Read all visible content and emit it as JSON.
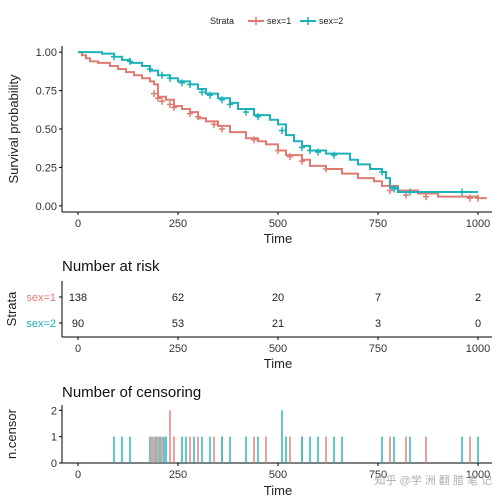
{
  "chart_data": [
    {
      "type": "line",
      "subtype": "kaplan-meier",
      "title": "",
      "xlabel": "Time",
      "ylabel": "Survival probability",
      "xlim": [
        -40,
        1035
      ],
      "ylim": [
        -0.04,
        1.04
      ],
      "x_ticks": [
        0,
        250,
        500,
        750,
        1000
      ],
      "y_ticks": [
        0.0,
        0.25,
        0.5,
        0.75,
        1.0
      ],
      "x_tick_labels": [
        "0",
        "250",
        "500",
        "750",
        "1000"
      ],
      "y_tick_labels": [
        "0.00",
        "0.25",
        "0.50",
        "0.75",
        "1.00"
      ],
      "grid": false,
      "legend": {
        "title": "Strata",
        "position": "top",
        "entries": [
          "sex=1",
          "sex=2"
        ]
      },
      "series": [
        {
          "name": "sex=1",
          "color": "#e07b72",
          "points": [
            [
              0,
              1.0
            ],
            [
              10,
              0.98
            ],
            [
              20,
              0.96
            ],
            [
              30,
              0.94
            ],
            [
              50,
              0.93
            ],
            [
              80,
              0.91
            ],
            [
              100,
              0.89
            ],
            [
              120,
              0.87
            ],
            [
              140,
              0.85
            ],
            [
              160,
              0.83
            ],
            [
              180,
              0.81
            ],
            [
              190,
              0.79
            ],
            [
              200,
              0.71
            ],
            [
              220,
              0.69
            ],
            [
              240,
              0.65
            ],
            [
              260,
              0.63
            ],
            [
              280,
              0.61
            ],
            [
              300,
              0.57
            ],
            [
              320,
              0.55
            ],
            [
              350,
              0.52
            ],
            [
              380,
              0.48
            ],
            [
              420,
              0.44
            ],
            [
              450,
              0.42
            ],
            [
              470,
              0.4
            ],
            [
              500,
              0.36
            ],
            [
              520,
              0.33
            ],
            [
              560,
              0.3
            ],
            [
              580,
              0.26
            ],
            [
              620,
              0.24
            ],
            [
              660,
              0.21
            ],
            [
              700,
              0.18
            ],
            [
              740,
              0.16
            ],
            [
              760,
              0.13
            ],
            [
              800,
              0.1
            ],
            [
              850,
              0.08
            ],
            [
              900,
              0.06
            ],
            [
              1000,
              0.05
            ],
            [
              1022,
              0.05
            ]
          ],
          "censor_marks": [
            [
              190,
              0.73
            ],
            [
              200,
              0.7
            ],
            [
              210,
              0.68
            ],
            [
              230,
              0.66
            ],
            [
              240,
              0.64
            ],
            [
              280,
              0.6
            ],
            [
              300,
              0.58
            ],
            [
              340,
              0.53
            ],
            [
              360,
              0.5
            ],
            [
              440,
              0.43
            ],
            [
              500,
              0.36
            ],
            [
              530,
              0.32
            ],
            [
              560,
              0.29
            ],
            [
              620,
              0.24
            ],
            [
              780,
              0.1
            ],
            [
              820,
              0.07
            ],
            [
              870,
              0.06
            ],
            [
              980,
              0.05
            ],
            [
              1000,
              0.05
            ]
          ]
        },
        {
          "name": "sex=2",
          "color": "#1bb2b9",
          "points": [
            [
              0,
              1.0
            ],
            [
              60,
              0.99
            ],
            [
              90,
              0.97
            ],
            [
              110,
              0.95
            ],
            [
              130,
              0.93
            ],
            [
              160,
              0.91
            ],
            [
              180,
              0.88
            ],
            [
              200,
              0.85
            ],
            [
              230,
              0.83
            ],
            [
              250,
              0.81
            ],
            [
              280,
              0.79
            ],
            [
              300,
              0.76
            ],
            [
              320,
              0.73
            ],
            [
              350,
              0.7
            ],
            [
              380,
              0.67
            ],
            [
              400,
              0.63
            ],
            [
              440,
              0.59
            ],
            [
              480,
              0.56
            ],
            [
              500,
              0.53
            ],
            [
              520,
              0.46
            ],
            [
              540,
              0.42
            ],
            [
              560,
              0.39
            ],
            [
              580,
              0.36
            ],
            [
              620,
              0.34
            ],
            [
              680,
              0.3
            ],
            [
              700,
              0.27
            ],
            [
              730,
              0.24
            ],
            [
              760,
              0.22
            ],
            [
              770,
              0.18
            ],
            [
              780,
              0.12
            ],
            [
              800,
              0.09
            ],
            [
              960,
              0.09
            ],
            [
              1000,
              0.09
            ]
          ],
          "censor_marks": [
            [
              90,
              0.97
            ],
            [
              130,
              0.94
            ],
            [
              180,
              0.89
            ],
            [
              210,
              0.85
            ],
            [
              230,
              0.83
            ],
            [
              260,
              0.8
            ],
            [
              280,
              0.79
            ],
            [
              310,
              0.74
            ],
            [
              330,
              0.72
            ],
            [
              360,
              0.69
            ],
            [
              380,
              0.66
            ],
            [
              420,
              0.61
            ],
            [
              450,
              0.58
            ],
            [
              510,
              0.49
            ],
            [
              560,
              0.38
            ],
            [
              580,
              0.36
            ],
            [
              600,
              0.35
            ],
            [
              640,
              0.33
            ],
            [
              760,
              0.22
            ],
            [
              790,
              0.11
            ],
            [
              830,
              0.09
            ],
            [
              960,
              0.09
            ]
          ]
        }
      ]
    },
    {
      "type": "table",
      "title": "Number at risk",
      "xlabel": "Time",
      "ylabel": "Strata",
      "x_ticks": [
        0,
        250,
        500,
        750,
        1000
      ],
      "x_tick_labels": [
        "0",
        "250",
        "500",
        "750",
        "1000"
      ],
      "row_labels": [
        "sex=1",
        "sex=2"
      ],
      "row_colors": [
        "#e07b72",
        "#1bb2b9"
      ],
      "times": [
        0,
        250,
        500,
        750,
        1000
      ],
      "rows": [
        [
          "138",
          "62",
          "20",
          "7",
          "2"
        ],
        [
          "90",
          "53",
          "21",
          "3",
          "0"
        ]
      ]
    },
    {
      "type": "bar",
      "title": "Number of censoring",
      "xlabel": "Time",
      "ylabel": "n.censor",
      "y_ticks": [
        0,
        1,
        2
      ],
      "y_tick_labels": [
        "0",
        "1",
        "2"
      ],
      "x_ticks": [
        0,
        250,
        500,
        750,
        1000
      ],
      "x_tick_labels": [
        "0",
        "250",
        "500",
        "750",
        "1000"
      ],
      "ylim": [
        0,
        2.2
      ],
      "series": [
        {
          "name": "sex=1",
          "color": "#e07b72",
          "events": [
            [
              185,
              1
            ],
            [
              190,
              1
            ],
            [
              200,
              1
            ],
            [
              210,
              1
            ],
            [
              230,
              2
            ],
            [
              240,
              1
            ],
            [
              280,
              1
            ],
            [
              300,
              1
            ],
            [
              340,
              1
            ],
            [
              360,
              1
            ],
            [
              440,
              1
            ],
            [
              470,
              1
            ],
            [
              530,
              1
            ],
            [
              560,
              1
            ],
            [
              620,
              1
            ],
            [
              780,
              1
            ],
            [
              820,
              1
            ],
            [
              870,
              1
            ],
            [
              980,
              1
            ]
          ]
        },
        {
          "name": "sex=2",
          "color": "#1bb2b9",
          "events": [
            [
              90,
              1
            ],
            [
              110,
              1
            ],
            [
              130,
              1
            ],
            [
              180,
              1
            ],
            [
              195,
              1
            ],
            [
              205,
              1
            ],
            [
              215,
              1
            ],
            [
              220,
              1
            ],
            [
              260,
              1
            ],
            [
              270,
              1
            ],
            [
              290,
              1
            ],
            [
              310,
              1
            ],
            [
              330,
              1
            ],
            [
              360,
              1
            ],
            [
              380,
              1
            ],
            [
              420,
              1
            ],
            [
              450,
              1
            ],
            [
              510,
              2
            ],
            [
              520,
              1
            ],
            [
              560,
              1
            ],
            [
              580,
              1
            ],
            [
              600,
              1
            ],
            [
              640,
              1
            ],
            [
              660,
              1
            ],
            [
              760,
              1
            ],
            [
              790,
              1
            ],
            [
              830,
              1
            ],
            [
              960,
              1
            ],
            [
              1000,
              1
            ]
          ]
        }
      ]
    }
  ],
  "watermark": "知乎 @学 洲 翻 腊 笔 记"
}
